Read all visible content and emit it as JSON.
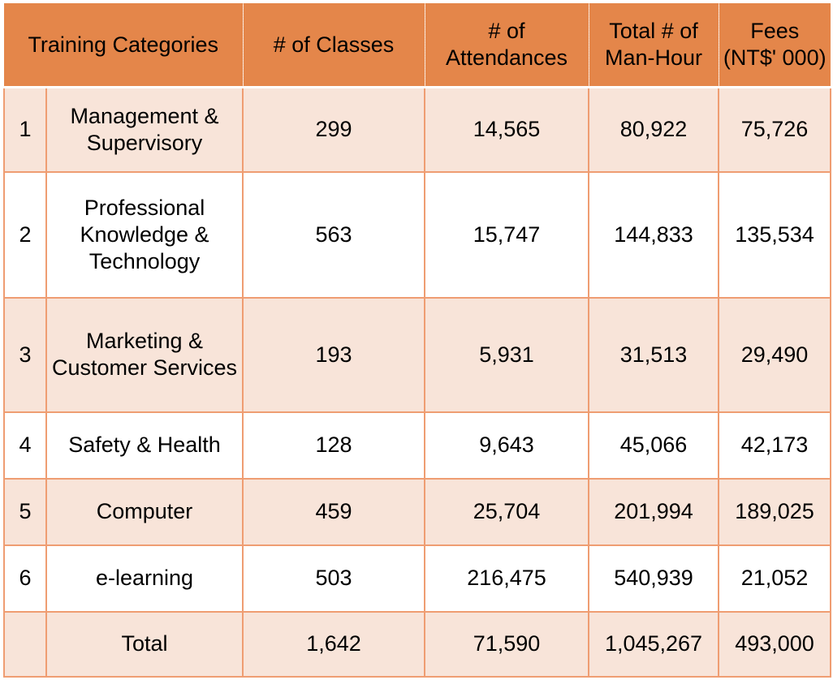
{
  "headers": {
    "category": "Training Categories",
    "classes": "# of Classes",
    "attendances": "# of Attendances",
    "manhours": "Total # of Man-Hour",
    "fees": "Fees (NT$' 000)"
  },
  "rows": [
    {
      "num": "1",
      "category": "Management & Supervisory",
      "classes": "299",
      "attendances": "14,565",
      "manhours": "80,922",
      "fees": "75,726"
    },
    {
      "num": "2",
      "category": "Professional Knowledge & Technology",
      "classes": "563",
      "attendances": "15,747",
      "manhours": "144,833",
      "fees": "135,534"
    },
    {
      "num": "3",
      "category": "Marketing & Customer Services",
      "classes": "193",
      "attendances": "5,931",
      "manhours": "31,513",
      "fees": "29,490"
    },
    {
      "num": "4",
      "category": "Safety & Health",
      "classes": "128",
      "attendances": "9,643",
      "manhours": "45,066",
      "fees": "42,173"
    },
    {
      "num": "5",
      "category": "Computer",
      "classes": "459",
      "attendances": "25,704",
      "manhours": "201,994",
      "fees": "189,025"
    },
    {
      "num": "6",
      "category": "e-learning",
      "classes": "503",
      "attendances": "216,475",
      "manhours": "540,939",
      "fees": "21,052"
    }
  ],
  "total": {
    "label": "Total",
    "classes": "1,642",
    "attendances": "71,590",
    "manhours": "1,045,267",
    "fees": "493,000"
  }
}
